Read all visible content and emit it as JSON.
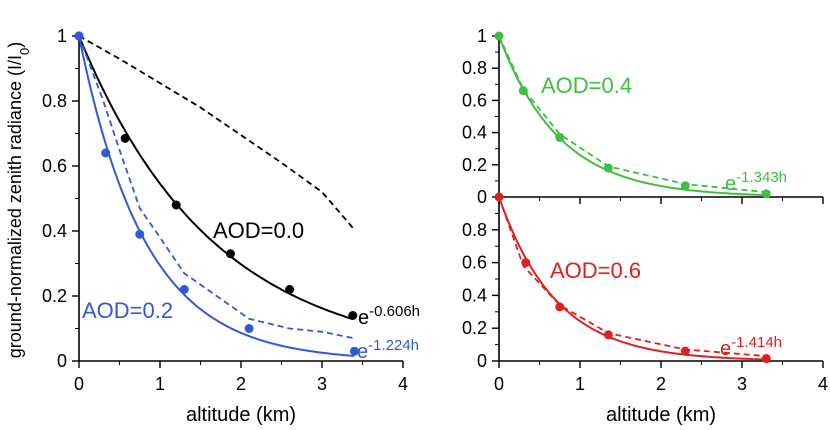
{
  "chart_data": [
    {
      "id": "left",
      "type": "scatter",
      "xlabel": "altitude (km)",
      "ylabel": "ground-normalized zenith radiance (I/I",
      "ylabel_sub": "0",
      "ylabel_close": ")",
      "xlim": [
        0,
        4
      ],
      "ylim": [
        0,
        1
      ],
      "xticks": [
        0,
        1,
        2,
        3,
        4
      ],
      "yticks": [
        0,
        0.2,
        0.4,
        0.6,
        0.8,
        1
      ],
      "ytick_labels": [
        "0",
        "0.2",
        "0.4",
        "0.6",
        "0.8",
        "1"
      ],
      "series": [
        {
          "name": "AOD=0.0",
          "color": "#000000",
          "points": {
            "x": [
              0,
              0.57,
              1.2,
              1.87,
              2.6,
              3.38
            ],
            "y": [
              1.0,
              0.685,
              0.48,
              0.33,
              0.22,
              0.14
            ]
          },
          "fit_rate": 0.606,
          "fit_xmax": 3.38,
          "fit_label_base": "e",
          "fit_label_exp": "-0.606h",
          "dashed": {
            "x": [
              0,
              0.5,
              1.0,
              1.5,
              2.0,
              2.5,
              3.0,
              3.38
            ],
            "y": [
              1.0,
              0.93,
              0.855,
              0.78,
              0.695,
              0.61,
              0.52,
              0.41
            ]
          }
        },
        {
          "name": "AOD=0.2",
          "color": "#3358d6",
          "points": {
            "x": [
              0,
              0.33,
              0.75,
              1.3,
              2.1,
              3.4
            ],
            "y": [
              1.0,
              0.64,
              0.39,
              0.22,
              0.1,
              0.03
            ]
          },
          "fit_rate": 1.224,
          "fit_xmax": 3.4,
          "fit_label_base": "e",
          "fit_label_exp": "-1.224h",
          "dashed": {
            "x": [
              0,
              0.3,
              0.5,
              0.75,
              1.0,
              1.3,
              1.7,
              2.1,
              2.6,
              3.0,
              3.4
            ],
            "y": [
              1.0,
              0.8,
              0.65,
              0.47,
              0.38,
              0.27,
              0.2,
              0.13,
              0.1,
              0.09,
              0.07
            ]
          }
        }
      ]
    },
    {
      "id": "right-top",
      "type": "scatter",
      "xlim": [
        0,
        4
      ],
      "ylim": [
        0,
        1
      ],
      "yticks": [
        0,
        0.2,
        0.4,
        0.6,
        0.8,
        1
      ],
      "ytick_labels": [
        "0",
        "0.2",
        "0.4",
        "0.6",
        "0.8",
        "1"
      ],
      "series": [
        {
          "name": "AOD=0.4",
          "color": "#3fbf3f",
          "points": {
            "x": [
              0,
              0.3,
              0.75,
              1.35,
              2.3,
              3.3
            ],
            "y": [
              1.0,
              0.66,
              0.37,
              0.18,
              0.07,
              0.02
            ]
          },
          "fit_rate": 1.343,
          "fit_xmax": 3.3,
          "fit_label_base": "e",
          "fit_label_exp": "-1.343h",
          "dashed": {
            "x": [
              0,
              0.3,
              0.75,
              1.35,
              2.3,
              3.3
            ],
            "y": [
              1.0,
              0.67,
              0.39,
              0.19,
              0.08,
              0.03
            ]
          }
        }
      ]
    },
    {
      "id": "right-bottom",
      "type": "scatter",
      "xlabel": "altitude (km)",
      "xlim": [
        0,
        4
      ],
      "ylim": [
        0,
        1
      ],
      "xticks": [
        0,
        1,
        2,
        3,
        4
      ],
      "yticks": [
        0,
        0.2,
        0.4,
        0.6,
        0.8
      ],
      "ytick_labels": [
        "0",
        "0.2",
        "0.4",
        "0.6",
        "0.8"
      ],
      "series": [
        {
          "name": "AOD=0.6",
          "color": "#e02020",
          "points": {
            "x": [
              0,
              0.33,
              0.75,
              1.35,
              2.3,
              3.3
            ],
            "y": [
              1.0,
              0.6,
              0.33,
              0.16,
              0.06,
              0.015
            ]
          },
          "fit_rate": 1.414,
          "fit_xmax": 3.3,
          "fit_label_base": "e",
          "fit_label_exp": "-1.414h",
          "dashed": {
            "x": [
              0,
              0.3,
              0.75,
              1.35,
              2.3,
              3.3
            ],
            "y": [
              1.0,
              0.58,
              0.34,
              0.17,
              0.07,
              0.03
            ]
          }
        }
      ]
    }
  ]
}
